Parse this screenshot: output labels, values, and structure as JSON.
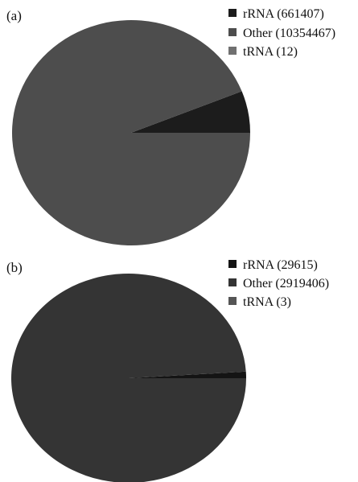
{
  "chart_data": [
    {
      "type": "pie",
      "panel_label": "(a)",
      "start_angle_deg": 0,
      "direction": "counterclockwise",
      "legend_position": "top-right",
      "slices": [
        {
          "label": "rRNA (661407)",
          "value": 661407,
          "color": "#1c1c1c"
        },
        {
          "label": "Other (10354467)",
          "value": 10354467,
          "color": "#4d4d4d"
        },
        {
          "label": "tRNA (12)",
          "value": 12,
          "color": "#707070"
        }
      ]
    },
    {
      "type": "pie",
      "panel_label": "(b)",
      "start_angle_deg": 0,
      "direction": "counterclockwise",
      "legend_position": "top-right",
      "slices": [
        {
          "label": "rRNA (29615)",
          "value": 29615,
          "color": "#141414"
        },
        {
          "label": "Other (2919406)",
          "value": 2919406,
          "color": "#343434"
        },
        {
          "label": "tRNA (3)",
          "value": 3,
          "color": "#555555"
        }
      ]
    }
  ]
}
